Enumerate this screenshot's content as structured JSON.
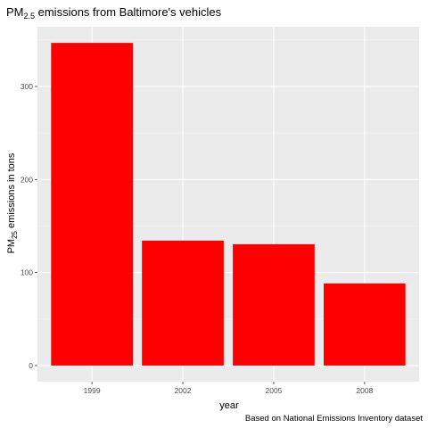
{
  "chart_data": {
    "type": "bar",
    "title_main": "PM",
    "title_sub": "2.5",
    "title_rest": " emissions from Baltimore's vehicles",
    "xlabel": "year",
    "ylabel_main": "PM",
    "ylabel_sub": "25",
    "ylabel_rest": " emissions in tons",
    "caption": "Based on National Emissions Inventory dataset",
    "categories": [
      "1999",
      "2002",
      "2005",
      "2008"
    ],
    "values": [
      346.82,
      134.31,
      130.43,
      88.28
    ],
    "ylim": [
      -17.3,
      364.2
    ],
    "yticks": [
      0,
      100,
      200,
      300
    ],
    "ytick_labels": [
      "0",
      "100",
      "200",
      "300"
    ],
    "grid": true,
    "legend": "none",
    "colors": {
      "bar": "#ff0000",
      "panel": "#ebebeb",
      "grid_major": "#ffffff",
      "grid_minor": "#f5f5f5",
      "text": "#000000",
      "tick_text": "#4d4d4d",
      "tick_mark": "#333333"
    }
  }
}
